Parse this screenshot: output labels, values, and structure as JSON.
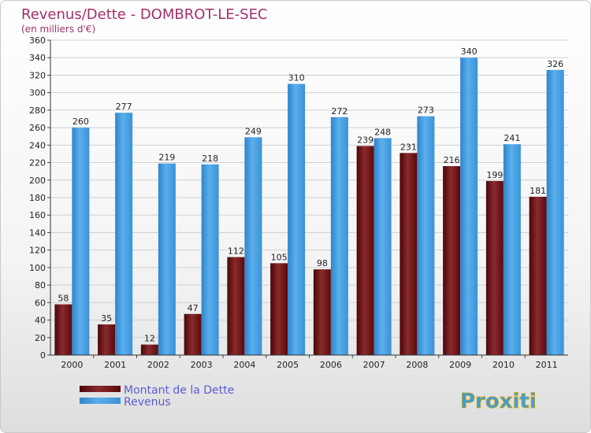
{
  "chart_data": {
    "type": "bar",
    "title": "Revenus/Dette - DOMBROT-LE-SEC",
    "subtitle": "(en milliers d'€)",
    "categories": [
      "2000",
      "2001",
      "2002",
      "2003",
      "2004",
      "2005",
      "2006",
      "2007",
      "2008",
      "2009",
      "2010",
      "2011"
    ],
    "series": [
      {
        "name": "Montant de la Dette",
        "color": "#6b0f12",
        "values": [
          58,
          35,
          12,
          47,
          112,
          105,
          98,
          239,
          231,
          216,
          199,
          181
        ]
      },
      {
        "name": "Revenus",
        "color": "#3d94dc",
        "values": [
          260,
          277,
          219,
          218,
          249,
          310,
          272,
          248,
          273,
          340,
          241,
          326
        ]
      }
    ],
    "ylim": [
      0,
      360
    ],
    "ytick_step": 20,
    "grid": true,
    "legend_position": "bottom-left"
  },
  "brand": {
    "logo_text": "Proxiti"
  }
}
